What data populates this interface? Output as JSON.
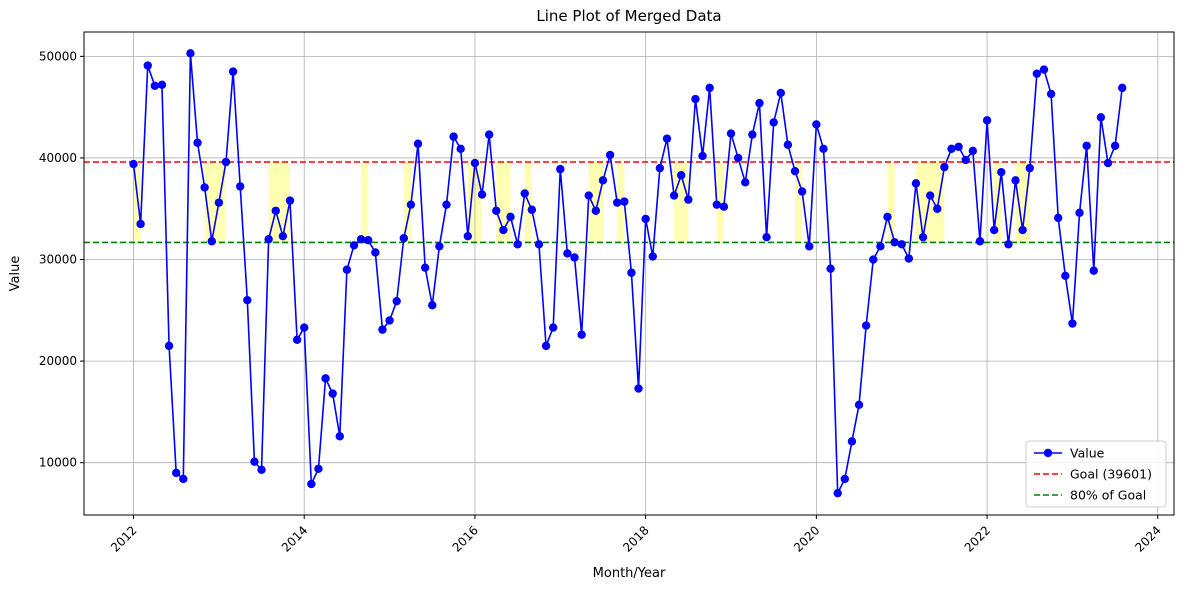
{
  "chart_data": {
    "type": "line",
    "title": "Line Plot of Merged Data",
    "xlabel": "Month/Year",
    "ylabel": "Value",
    "xlim": [
      2011.42,
      2024.19
    ],
    "ylim": [
      4850,
      52400
    ],
    "x_ticks": [
      2012,
      2014,
      2016,
      2018,
      2020,
      2022,
      2024
    ],
    "x_tick_labels": [
      "2012",
      "2014",
      "2016",
      "2018",
      "2020",
      "2022",
      "2024"
    ],
    "y_ticks": [
      10000,
      20000,
      30000,
      40000,
      50000
    ],
    "y_tick_labels": [
      "10000",
      "20000",
      "30000",
      "40000",
      "50000"
    ],
    "grid": true,
    "legend_position": "lower-right",
    "goal": 39601,
    "goal_fraction": 0.8,
    "shading": "band between 80% of goal and goal, yellow",
    "series": [
      {
        "name": "Value",
        "color": "#0000ff",
        "start": "2012-01",
        "interval": "month",
        "values": [
          39400,
          33500,
          49100,
          47100,
          47200,
          21500,
          9000,
          8400,
          50300,
          41500,
          37100,
          31800,
          35600,
          39600,
          48500,
          37200,
          26000,
          10100,
          9300,
          32000,
          34800,
          32300,
          35800,
          22100,
          23300,
          7900,
          9400,
          18300,
          16800,
          12600,
          29000,
          31400,
          32000,
          31900,
          30700,
          23100,
          24000,
          25900,
          32100,
          35400,
          41400,
          29200,
          25500,
          31300,
          35400,
          42100,
          40900,
          32300,
          39500,
          36400,
          42300,
          34800,
          32900,
          34200,
          31500,
          36500,
          34900,
          31500,
          21500,
          23300,
          38900,
          30600,
          30200,
          22600,
          36300,
          34800,
          37800,
          40300,
          35600,
          35700,
          28700,
          17300,
          34000,
          30300,
          39000,
          41900,
          36300,
          38300,
          35900,
          45800,
          40200,
          46900,
          35400,
          35200,
          42400,
          40000,
          37600,
          42300,
          45400,
          32200,
          43500,
          46400,
          41300,
          38700,
          36700,
          31300,
          43300,
          40900,
          29100,
          7000,
          8400,
          12100,
          15700,
          23500,
          30000,
          31300,
          34200,
          31700,
          31500,
          30100,
          37500,
          32200,
          36300,
          35000,
          39100,
          40900,
          41100,
          39800,
          40700,
          31800,
          43700,
          32900,
          38600,
          31500,
          37800,
          32900,
          39000,
          48300,
          48700,
          46300,
          34100,
          28400,
          23700,
          34600,
          41200,
          28900,
          44000,
          39500,
          41200,
          46900
        ]
      },
      {
        "name": "Goal (39601)",
        "color": "#ff0000",
        "style": "dashed",
        "y": 39601
      },
      {
        "name": "80% of Goal",
        "color": "#008000",
        "style": "dashed",
        "y": 31680.8
      }
    ]
  }
}
